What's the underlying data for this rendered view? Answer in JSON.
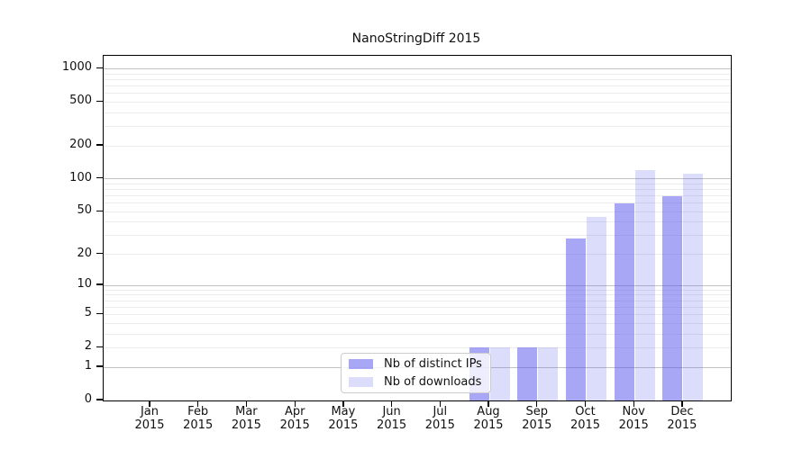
{
  "chart_data": {
    "type": "bar",
    "title": "NanoStringDiff 2015",
    "categories": [
      {
        "month": "Jan",
        "year": "2015"
      },
      {
        "month": "Feb",
        "year": "2015"
      },
      {
        "month": "Mar",
        "year": "2015"
      },
      {
        "month": "Apr",
        "year": "2015"
      },
      {
        "month": "May",
        "year": "2015"
      },
      {
        "month": "Jun",
        "year": "2015"
      },
      {
        "month": "Jul",
        "year": "2015"
      },
      {
        "month": "Aug",
        "year": "2015"
      },
      {
        "month": "Sep",
        "year": "2015"
      },
      {
        "month": "Oct",
        "year": "2015"
      },
      {
        "month": "Nov",
        "year": "2015"
      },
      {
        "month": "Dec",
        "year": "2015"
      }
    ],
    "series": [
      {
        "name": "Nb of distinct IPs",
        "color": "rgba(80,80,235,0.5)",
        "approx_solid_color": "#a9a9f5",
        "values": [
          0,
          0,
          0,
          0,
          0,
          0,
          0,
          2,
          2,
          28,
          60,
          70
        ]
      },
      {
        "name": "Nb of downloads",
        "color": "rgba(80,80,235,0.2)",
        "approx_solid_color": "#dadaf9",
        "values": [
          0,
          0,
          0,
          0,
          0,
          0,
          0,
          2,
          2,
          45,
          120,
          112
        ]
      }
    ],
    "yscale": "log1p",
    "ylim": [
      0,
      1300
    ],
    "y_ticks": [
      0,
      1,
      2,
      5,
      10,
      20,
      50,
      100,
      200,
      500,
      1000
    ],
    "major_gridlines": [
      1,
      10,
      100,
      1000
    ],
    "minor_gridlines": [
      2,
      3,
      4,
      5,
      6,
      7,
      8,
      9,
      20,
      30,
      40,
      50,
      60,
      70,
      80,
      90,
      200,
      300,
      400,
      500,
      600,
      700,
      800,
      900
    ],
    "grid": true,
    "legend_position": "bottom-center",
    "colors": {
      "major_grid": "#c3c3c3",
      "minor_grid": "#ececec",
      "spine": "#000000",
      "background": "#ffffff"
    }
  }
}
